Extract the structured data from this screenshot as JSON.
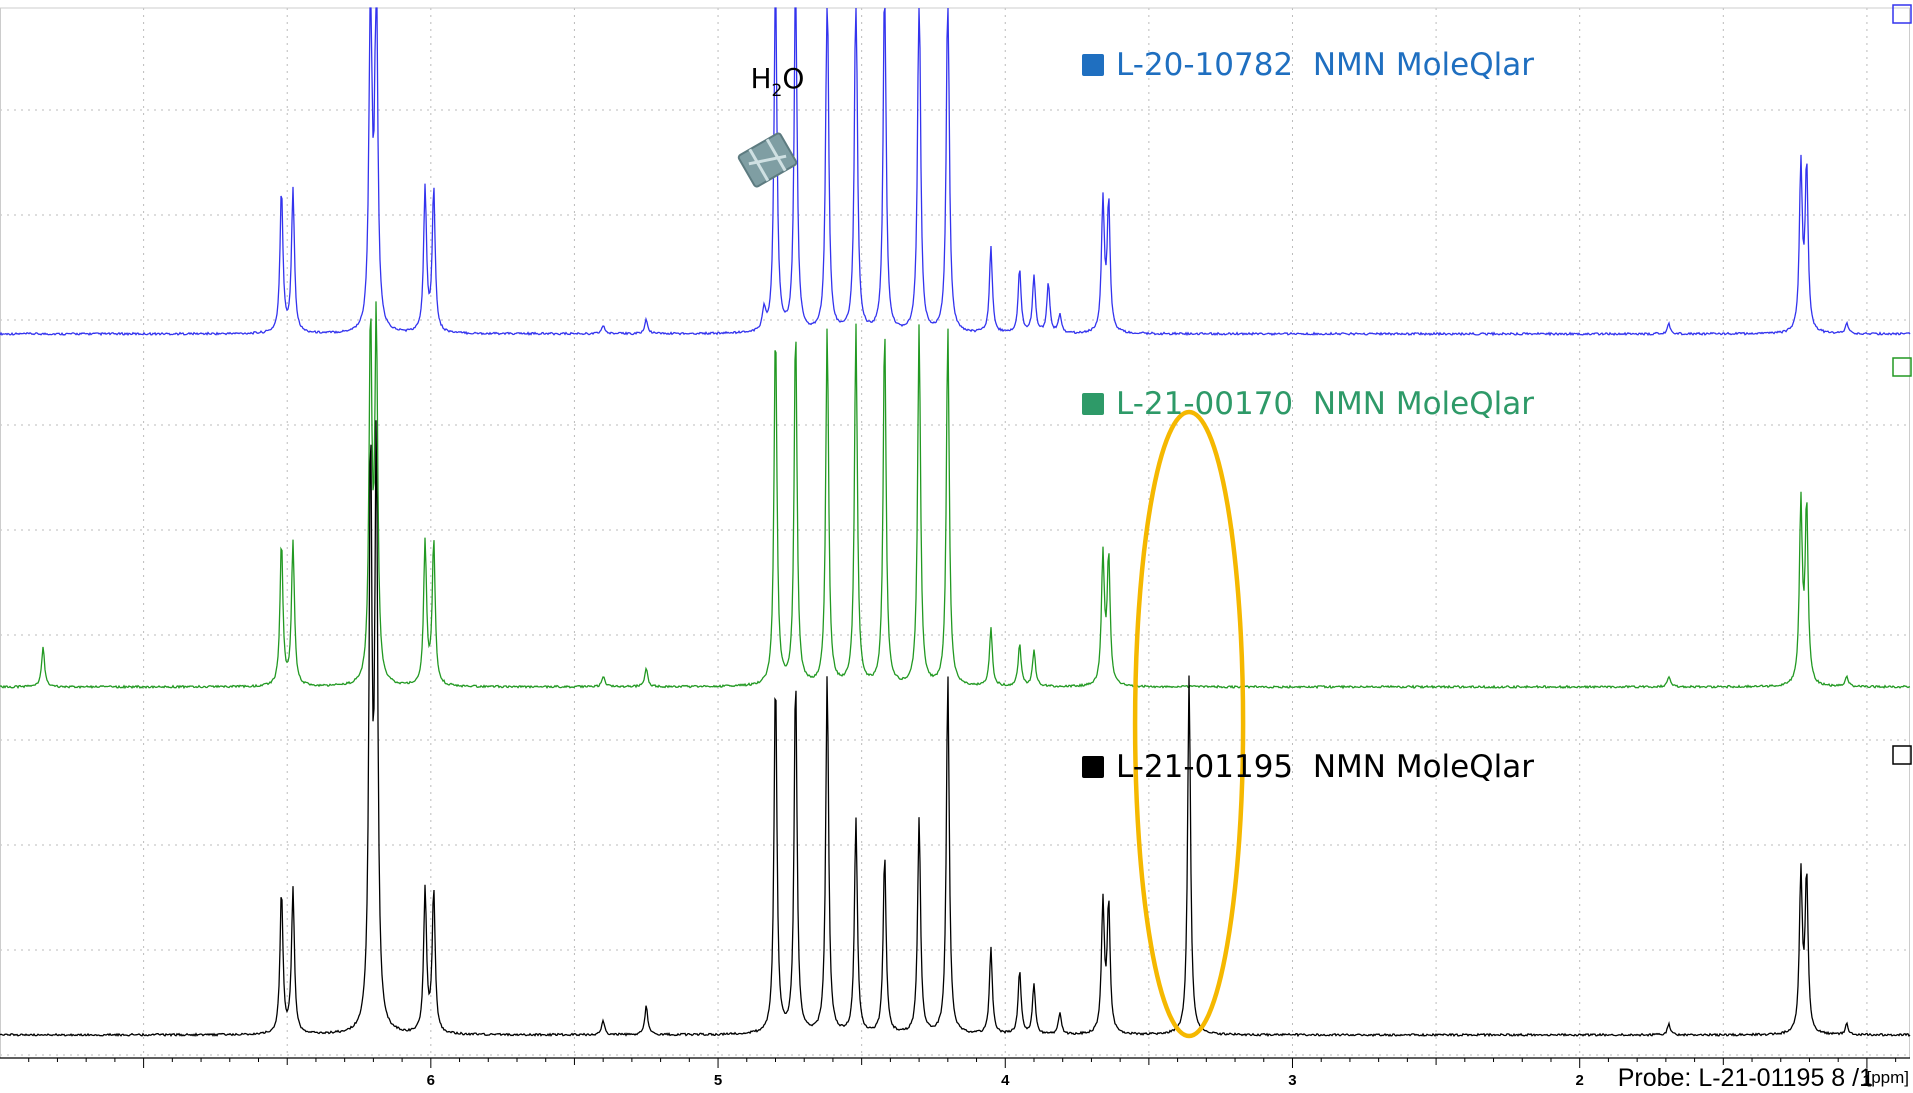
{
  "chart_data": {
    "type": "line",
    "title": "",
    "xlabel": "[ppm]",
    "ylabel": "",
    "xlim": [
      7.5,
      0.85
    ],
    "x_reversed": true,
    "x_ticks": [
      6,
      5,
      4,
      3,
      2,
      1
    ],
    "grid": true,
    "legend_position": "top-center",
    "series": [
      {
        "name": "L-20-10782  NMN MoleQlar",
        "color": "#3333ee",
        "legend_color": "#1f6fc0",
        "peaks": [
          {
            "x": 6.52,
            "height": 200
          },
          {
            "x": 6.48,
            "height": 200
          },
          {
            "x": 6.21,
            "height": 500
          },
          {
            "x": 6.19,
            "height": 500
          },
          {
            "x": 6.02,
            "height": 200
          },
          {
            "x": 5.99,
            "height": 200
          },
          {
            "x": 5.4,
            "height": 12
          },
          {
            "x": 5.25,
            "height": 20
          },
          {
            "x": 4.84,
            "height": 30
          },
          {
            "x": 4.8,
            "height": 500
          },
          {
            "x": 4.73,
            "height": 500
          },
          {
            "x": 4.62,
            "height": 500
          },
          {
            "x": 4.52,
            "height": 500
          },
          {
            "x": 4.42,
            "height": 500
          },
          {
            "x": 4.3,
            "height": 500
          },
          {
            "x": 4.2,
            "height": 500
          },
          {
            "x": 4.05,
            "height": 120
          },
          {
            "x": 3.95,
            "height": 90
          },
          {
            "x": 3.9,
            "height": 80
          },
          {
            "x": 3.85,
            "height": 70
          },
          {
            "x": 3.81,
            "height": 25
          },
          {
            "x": 3.66,
            "height": 180
          },
          {
            "x": 3.64,
            "height": 180
          },
          {
            "x": 1.69,
            "height": 15
          },
          {
            "x": 1.23,
            "height": 230
          },
          {
            "x": 1.21,
            "height": 230
          },
          {
            "x": 1.07,
            "height": 15
          }
        ]
      },
      {
        "name": "L-21-00170  NMN MoleQlar",
        "color": "#229922",
        "legend_color": "#2e9a68",
        "peaks": [
          {
            "x": 7.35,
            "height": 55
          },
          {
            "x": 6.52,
            "height": 200
          },
          {
            "x": 6.48,
            "height": 200
          },
          {
            "x": 6.21,
            "height": 500
          },
          {
            "x": 6.19,
            "height": 500
          },
          {
            "x": 6.02,
            "height": 200
          },
          {
            "x": 5.99,
            "height": 200
          },
          {
            "x": 5.4,
            "height": 15
          },
          {
            "x": 5.25,
            "height": 25
          },
          {
            "x": 4.8,
            "height": 500
          },
          {
            "x": 4.73,
            "height": 500
          },
          {
            "x": 4.62,
            "height": 500
          },
          {
            "x": 4.52,
            "height": 500
          },
          {
            "x": 4.42,
            "height": 500
          },
          {
            "x": 4.3,
            "height": 500
          },
          {
            "x": 4.2,
            "height": 500
          },
          {
            "x": 4.05,
            "height": 80
          },
          {
            "x": 3.95,
            "height": 60
          },
          {
            "x": 3.9,
            "height": 50
          },
          {
            "x": 3.66,
            "height": 180
          },
          {
            "x": 3.64,
            "height": 180
          },
          {
            "x": 1.69,
            "height": 15
          },
          {
            "x": 1.23,
            "height": 250
          },
          {
            "x": 1.21,
            "height": 250
          },
          {
            "x": 1.07,
            "height": 15
          }
        ]
      },
      {
        "name": "L-21-01195  NMN MoleQlar",
        "color": "#000000",
        "legend_color": "#000000",
        "peaks": [
          {
            "x": 6.52,
            "height": 200
          },
          {
            "x": 6.48,
            "height": 200
          },
          {
            "x": 6.21,
            "height": 800
          },
          {
            "x": 6.19,
            "height": 800
          },
          {
            "x": 6.02,
            "height": 200
          },
          {
            "x": 5.99,
            "height": 200
          },
          {
            "x": 5.4,
            "height": 20
          },
          {
            "x": 5.25,
            "height": 40
          },
          {
            "x": 4.8,
            "height": 500
          },
          {
            "x": 4.73,
            "height": 500
          },
          {
            "x": 4.62,
            "height": 500
          },
          {
            "x": 4.52,
            "height": 300
          },
          {
            "x": 4.42,
            "height": 250
          },
          {
            "x": 4.3,
            "height": 300
          },
          {
            "x": 4.2,
            "height": 500
          },
          {
            "x": 4.05,
            "height": 120
          },
          {
            "x": 3.95,
            "height": 90
          },
          {
            "x": 3.9,
            "height": 70
          },
          {
            "x": 3.81,
            "height": 30
          },
          {
            "x": 3.66,
            "height": 180
          },
          {
            "x": 3.64,
            "height": 180
          },
          {
            "x": 3.36,
            "height": 500
          },
          {
            "x": 1.69,
            "height": 15
          },
          {
            "x": 1.23,
            "height": 220
          },
          {
            "x": 1.21,
            "height": 220
          },
          {
            "x": 1.07,
            "height": 15
          }
        ]
      }
    ],
    "annotations": [
      {
        "text": "H",
        "subscript": "2",
        "suffix": "O",
        "x": 4.8,
        "kind": "solvent-peak"
      },
      {
        "kind": "highlight-ellipse",
        "x": 3.36,
        "color": "#f5b800"
      }
    ],
    "footer": "Probe: L-21-01195 8 /1",
    "unit_label": "[ppm]"
  }
}
